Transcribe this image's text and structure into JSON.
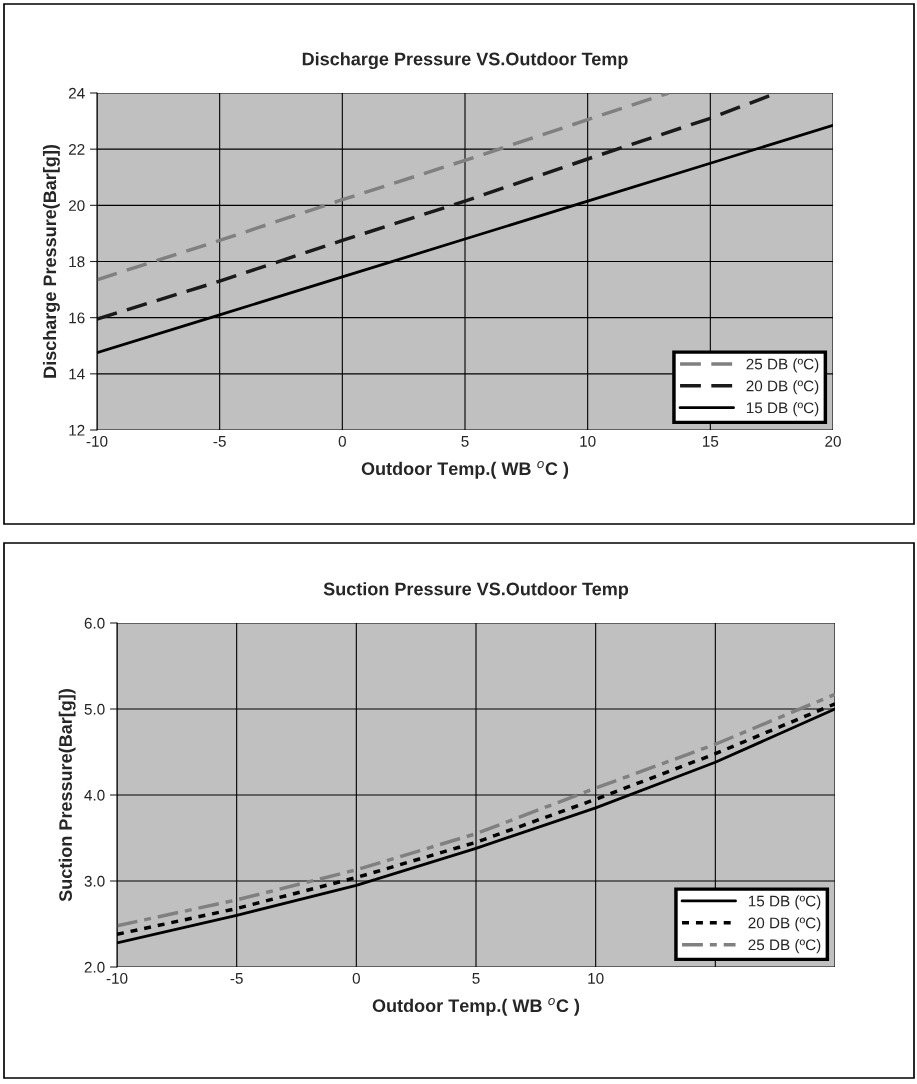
{
  "chart_data": [
    {
      "type": "line",
      "title": "Discharge Pressure VS.Outdoor Temp",
      "xlabel": "Outdoor Temp.( WB $^{o}$C )",
      "ylabel": "Discharge Pressure(Bar[g])",
      "xlim": [
        -10,
        20
      ],
      "xticks": [
        -10,
        -5,
        0,
        5,
        10,
        15,
        20
      ],
      "ylim": [
        12,
        24
      ],
      "yticks": [
        12,
        14,
        16,
        18,
        20,
        22,
        24
      ],
      "grid": true,
      "legend": "bottom right",
      "series": [
        {
          "name": "25 DB (ºC)",
          "color": "#808080",
          "line_style": "dashed",
          "x": [
            -10,
            -5,
            0,
            5,
            10,
            13.3
          ],
          "values": [
            17.35,
            18.75,
            20.2,
            21.6,
            23.05,
            24.0
          ]
        },
        {
          "name": "20 DB (ºC)",
          "color": "#1a1a1a",
          "line_style": "dashed",
          "x": [
            -10,
            -5,
            0,
            5,
            10,
            15,
            17.7
          ],
          "values": [
            15.95,
            17.3,
            18.75,
            20.15,
            21.65,
            23.1,
            24.0
          ]
        },
        {
          "name": "15 DB (ºC)",
          "color": "#000000",
          "line_style": "solid",
          "x": [
            -10,
            -5,
            0,
            5,
            10,
            15,
            20
          ],
          "values": [
            14.75,
            16.1,
            17.45,
            18.8,
            20.15,
            21.5,
            22.85
          ]
        }
      ]
    },
    {
      "type": "line",
      "title": "Suction Pressure VS.Outdoor Temp",
      "xlabel": "Outdoor Temp.( WB $^{o}$C )",
      "ylabel": "Suction Pressure(Bar[g])",
      "xlim": [
        -10,
        20
      ],
      "xticks": [
        -10,
        -5,
        0,
        5,
        10,
        {
          "value": 15,
          "label": null
        },
        {
          "value": 20,
          "label": null
        }
      ],
      "ylim": [
        2,
        6
      ],
      "yticks": [
        {
          "value": 2,
          "label": "2.0"
        },
        {
          "value": 3,
          "label": "3.0"
        },
        {
          "value": 4,
          "label": "4.0"
        },
        {
          "value": 5,
          "label": "5.0"
        },
        {
          "value": 6,
          "label": "6.0"
        }
      ],
      "grid": true,
      "legend": "bottom right",
      "series": [
        {
          "name": "15 DB (ºC)",
          "color": "#000000",
          "line_style": "solid",
          "x": [
            -10,
            -5,
            0,
            5,
            10,
            15,
            20
          ],
          "values": [
            2.28,
            2.6,
            2.95,
            3.38,
            3.85,
            4.38,
            5.0
          ]
        },
        {
          "name": "20 DB (ºC)",
          "color": "#000000",
          "line_style": "dotted",
          "x": [
            -10,
            -5,
            0,
            5,
            10,
            15,
            20
          ],
          "values": [
            2.38,
            2.68,
            3.04,
            3.45,
            3.95,
            4.48,
            5.06
          ]
        },
        {
          "name": "25 DB (ºC)",
          "color": "#808080",
          "line_style": "dashdot",
          "x": [
            -10,
            -5,
            0,
            5,
            10,
            15,
            20
          ],
          "values": [
            2.48,
            2.78,
            3.13,
            3.55,
            4.08,
            4.59,
            5.17
          ]
        }
      ]
    }
  ]
}
